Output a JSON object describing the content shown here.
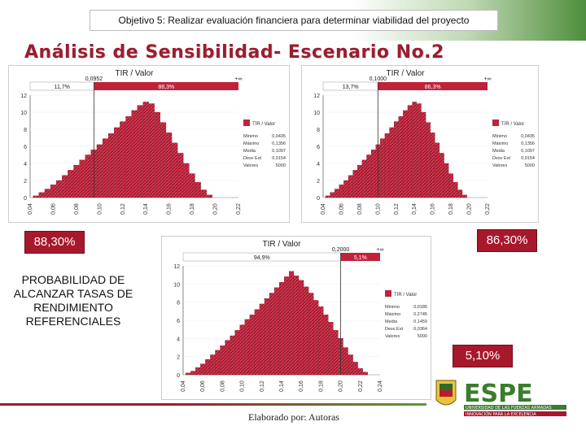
{
  "header": {
    "objective": "Objetivo 5: Realizar evaluación financiera para determinar viabilidad del proyecto"
  },
  "title": "Análisis de Sensibilidad- Escenario No.2",
  "charts": [
    {
      "title": "TIR / Valor",
      "marker_left": "0,0952",
      "marker_right": "+∞",
      "band_left": "11,7%",
      "band_right": "88,3%",
      "legend": "TIR / Valor",
      "stats_labels": [
        "Mínimo",
        "Máximo",
        "Media",
        "Desv Est",
        "Valores"
      ],
      "stats_values": [
        "0,0435",
        "0,1356",
        "0,1097",
        "0,0154",
        "5000"
      ]
    },
    {
      "title": "TIR / Valor",
      "marker_left": "0,1000",
      "marker_right": "+∞",
      "band_left": "13,7%",
      "band_right": "86,3%",
      "legend": "TIR / Valor",
      "stats_labels": [
        "Mínimo",
        "Máximo",
        "Media",
        "Desv Est",
        "Valores"
      ],
      "stats_values": [
        "0,0435",
        "0,1356",
        "0,1097",
        "0,0154",
        "5000"
      ]
    },
    {
      "title": "TIR / Valor",
      "marker_left": "0,2000",
      "marker_right": "+∞",
      "band_left": "94,9%",
      "band_right": "5,1%",
      "legend": "TIR / Valor",
      "stats_labels": [
        "Mínimo",
        "Máximo",
        "Media",
        "Desv Est",
        "Valores"
      ],
      "stats_values": [
        "0,0185",
        "0,2745",
        "0,1459",
        "0,0364",
        "5000"
      ]
    }
  ],
  "percent_labels": {
    "left": "88,30%",
    "right": "86,30%",
    "bottom": "5,10%"
  },
  "probability_text": "PROBABILIDAD DE ALCANZAR TASAS DE RENDIMIENTO REFERENCIALES",
  "logo": {
    "name": "ESPE",
    "subtitle": "UNIVERSIDAD DE LAS FUERZAS ARMADAS",
    "tagline": "INNOVACIÓN PARA LA EXCELENCIA"
  },
  "footer": {
    "credit": "Elaborado por: Autoras"
  },
  "colors": {
    "brand_red": "#a8182c",
    "bar_red": "#c0223a",
    "brand_green": "#3a7d2c"
  },
  "chart_data": [
    {
      "type": "bar",
      "title": "TIR / Valor",
      "x_ticks": [
        "0,04",
        "0,06",
        "0,08",
        "0,10",
        "0,12",
        "0,14",
        "0,16",
        "0,18",
        "0,20",
        "0,22"
      ],
      "xlim": [
        0.04,
        0.22
      ],
      "y_ticks": [
        "0",
        "2",
        "4",
        "6",
        "8",
        "10",
        "12"
      ],
      "ylim": [
        0,
        12
      ],
      "threshold": 0.0952,
      "x": [
        0.045,
        0.05,
        0.055,
        0.06,
        0.065,
        0.07,
        0.075,
        0.08,
        0.085,
        0.09,
        0.095,
        0.1,
        0.105,
        0.11,
        0.115,
        0.12,
        0.125,
        0.13,
        0.135,
        0.14,
        0.145,
        0.15,
        0.155,
        0.16,
        0.165,
        0.17,
        0.175,
        0.18,
        0.185,
        0.19,
        0.195
      ],
      "values": [
        0.2,
        0.6,
        1.0,
        1.5,
        2.0,
        2.6,
        3.2,
        3.8,
        4.4,
        5.0,
        5.6,
        6.2,
        6.9,
        7.5,
        8.2,
        8.9,
        9.5,
        10.2,
        10.8,
        11.2,
        11.0,
        10.0,
        8.8,
        7.6,
        6.4,
        5.2,
        4.0,
        2.8,
        1.8,
        0.9,
        0.3
      ]
    },
    {
      "type": "bar",
      "title": "TIR / Valor",
      "x_ticks": [
        "0,04",
        "0,06",
        "0,08",
        "0,10",
        "0,12",
        "0,14",
        "0,16",
        "0,18",
        "0,20",
        "0,22"
      ],
      "xlim": [
        0.04,
        0.22
      ],
      "y_ticks": [
        "0",
        "2",
        "4",
        "6",
        "8",
        "10",
        "12"
      ],
      "ylim": [
        0,
        12
      ],
      "threshold": 0.1,
      "x": [
        0.045,
        0.05,
        0.055,
        0.06,
        0.065,
        0.07,
        0.075,
        0.08,
        0.085,
        0.09,
        0.095,
        0.1,
        0.105,
        0.11,
        0.115,
        0.12,
        0.125,
        0.13,
        0.135,
        0.14,
        0.145,
        0.15,
        0.155,
        0.16,
        0.165,
        0.17,
        0.175,
        0.18,
        0.185,
        0.19,
        0.195
      ],
      "values": [
        0.2,
        0.6,
        1.0,
        1.5,
        2.0,
        2.6,
        3.2,
        3.8,
        4.4,
        5.0,
        5.6,
        6.2,
        6.9,
        7.5,
        8.2,
        8.9,
        9.5,
        10.2,
        10.8,
        11.2,
        11.0,
        10.0,
        8.8,
        7.6,
        6.4,
        5.2,
        4.0,
        2.8,
        1.8,
        0.9,
        0.3
      ]
    },
    {
      "type": "bar",
      "title": "TIR / Valor",
      "x_ticks": [
        "0,04",
        "0,06",
        "0,08",
        "0,10",
        "0,12",
        "0,14",
        "0,16",
        "0,18",
        "0,20",
        "0,22",
        "0,24"
      ],
      "xlim": [
        0.04,
        0.24
      ],
      "y_ticks": [
        "0",
        "2",
        "4",
        "6",
        "8",
        "10",
        "12"
      ],
      "ylim": [
        0,
        12
      ],
      "threshold": 0.2,
      "x": [
        0.045,
        0.05,
        0.055,
        0.06,
        0.065,
        0.07,
        0.075,
        0.08,
        0.085,
        0.09,
        0.095,
        0.1,
        0.105,
        0.11,
        0.115,
        0.12,
        0.125,
        0.13,
        0.135,
        0.14,
        0.145,
        0.15,
        0.155,
        0.16,
        0.165,
        0.17,
        0.175,
        0.18,
        0.185,
        0.19,
        0.195,
        0.2,
        0.205,
        0.21,
        0.215,
        0.22,
        0.225
      ],
      "values": [
        0.2,
        0.4,
        0.8,
        1.2,
        1.7,
        2.2,
        2.7,
        3.2,
        3.8,
        4.3,
        4.9,
        5.5,
        6.1,
        6.6,
        7.2,
        7.8,
        8.4,
        9.0,
        9.6,
        10.2,
        10.8,
        11.4,
        10.9,
        10.4,
        9.7,
        9.0,
        8.2,
        7.5,
        6.6,
        5.8,
        4.9,
        4.0,
        3.0,
        2.2,
        1.4,
        0.7,
        0.3
      ]
    }
  ]
}
